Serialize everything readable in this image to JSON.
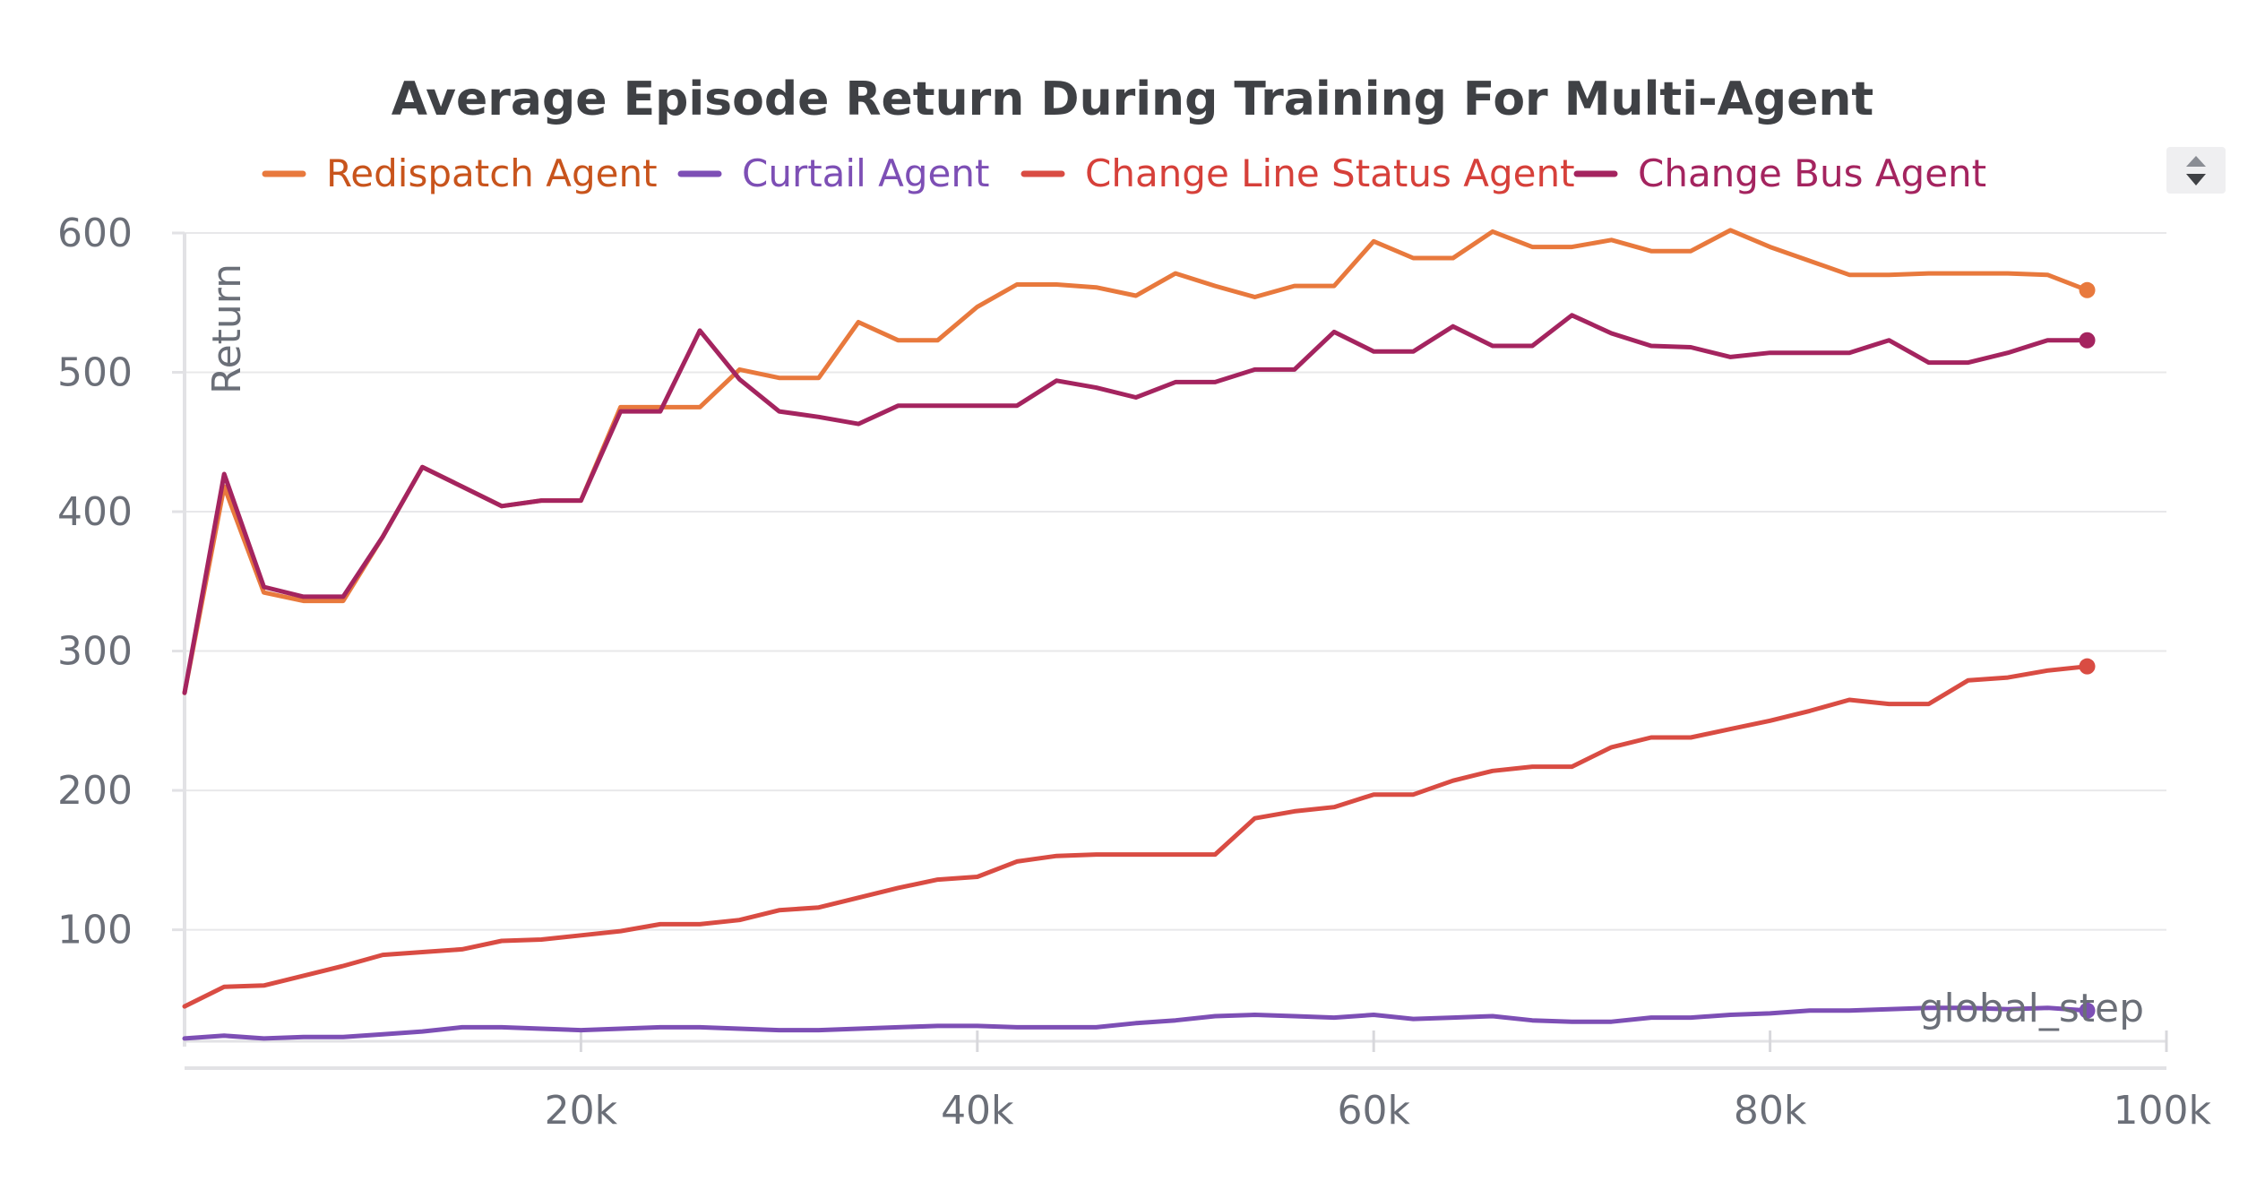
{
  "chart_data": {
    "type": "line",
    "title": "Average Episode Return During Training For Multi-Agent",
    "xlabel": "global_step",
    "ylabel": "Return",
    "xlim": [
      0,
      100000
    ],
    "ylim": [
      20,
      600
    ],
    "x_ticks": [
      {
        "value": 20000,
        "label": "20k"
      },
      {
        "value": 40000,
        "label": "40k"
      },
      {
        "value": 60000,
        "label": "60k"
      },
      {
        "value": 80000,
        "label": "80k"
      },
      {
        "value": 100000,
        "label": "100k"
      }
    ],
    "y_ticks": [
      {
        "value": 100,
        "label": "100"
      },
      {
        "value": 200,
        "label": "200"
      },
      {
        "value": 300,
        "label": "300"
      },
      {
        "value": 400,
        "label": "400"
      },
      {
        "value": 500,
        "label": "500"
      },
      {
        "value": 600,
        "label": "600"
      }
    ],
    "grid": true,
    "legend_position": "top",
    "series": [
      {
        "name": "Redispatch Agent",
        "color": "#e8793d",
        "label_color": "#c8541c",
        "points": [
          [
            0,
            270
          ],
          [
            2000,
            418
          ],
          [
            4000,
            342
          ],
          [
            6000,
            336
          ],
          [
            8000,
            336
          ],
          [
            10000,
            382
          ],
          [
            12000,
            432
          ],
          [
            14000,
            418
          ],
          [
            16000,
            404
          ],
          [
            18000,
            408
          ],
          [
            20000,
            408
          ],
          [
            22000,
            475
          ],
          [
            24000,
            475
          ],
          [
            26000,
            475
          ],
          [
            28000,
            502
          ],
          [
            30000,
            496
          ],
          [
            32000,
            496
          ],
          [
            34000,
            536
          ],
          [
            36000,
            523
          ],
          [
            38000,
            523
          ],
          [
            40000,
            547
          ],
          [
            42000,
            563
          ],
          [
            44000,
            563
          ],
          [
            46000,
            561
          ],
          [
            48000,
            555
          ],
          [
            50000,
            571
          ],
          [
            52000,
            562
          ],
          [
            54000,
            554
          ],
          [
            56000,
            562
          ],
          [
            58000,
            562
          ],
          [
            60000,
            594
          ],
          [
            62000,
            582
          ],
          [
            64000,
            582
          ],
          [
            66000,
            601
          ],
          [
            68000,
            590
          ],
          [
            70000,
            590
          ],
          [
            72000,
            595
          ],
          [
            74000,
            587
          ],
          [
            76000,
            587
          ],
          [
            78000,
            602
          ],
          [
            80000,
            590
          ],
          [
            82000,
            580
          ],
          [
            84000,
            570
          ],
          [
            86000,
            570
          ],
          [
            88000,
            571
          ],
          [
            90000,
            571
          ],
          [
            92000,
            571
          ],
          [
            94000,
            570
          ],
          [
            96000,
            559
          ]
        ]
      },
      {
        "name": "Curtail Agent",
        "color": "#7d4fb5",
        "label_color": "#7d4fb5",
        "points": [
          [
            0,
            22
          ],
          [
            2000,
            24
          ],
          [
            4000,
            22
          ],
          [
            6000,
            23
          ],
          [
            8000,
            23
          ],
          [
            10000,
            25
          ],
          [
            12000,
            27
          ],
          [
            14000,
            30
          ],
          [
            16000,
            30
          ],
          [
            18000,
            29
          ],
          [
            20000,
            28
          ],
          [
            22000,
            29
          ],
          [
            24000,
            30
          ],
          [
            26000,
            30
          ],
          [
            28000,
            29
          ],
          [
            30000,
            28
          ],
          [
            32000,
            28
          ],
          [
            34000,
            29
          ],
          [
            36000,
            30
          ],
          [
            38000,
            31
          ],
          [
            40000,
            31
          ],
          [
            42000,
            30
          ],
          [
            44000,
            30
          ],
          [
            46000,
            30
          ],
          [
            48000,
            33
          ],
          [
            50000,
            35
          ],
          [
            52000,
            38
          ],
          [
            54000,
            39
          ],
          [
            56000,
            38
          ],
          [
            58000,
            37
          ],
          [
            60000,
            39
          ],
          [
            62000,
            36
          ],
          [
            64000,
            37
          ],
          [
            66000,
            38
          ],
          [
            68000,
            35
          ],
          [
            70000,
            34
          ],
          [
            72000,
            34
          ],
          [
            74000,
            37
          ],
          [
            76000,
            37
          ],
          [
            78000,
            39
          ],
          [
            80000,
            40
          ],
          [
            82000,
            42
          ],
          [
            84000,
            42
          ],
          [
            86000,
            43
          ],
          [
            88000,
            44
          ],
          [
            90000,
            44
          ],
          [
            92000,
            43
          ],
          [
            94000,
            44
          ],
          [
            96000,
            42
          ]
        ]
      },
      {
        "name": "Change Line Status Agent",
        "color": "#d94c43",
        "label_color": "#d6403a",
        "points": [
          [
            0,
            45
          ],
          [
            2000,
            59
          ],
          [
            4000,
            60
          ],
          [
            6000,
            67
          ],
          [
            8000,
            74
          ],
          [
            10000,
            82
          ],
          [
            12000,
            84
          ],
          [
            14000,
            86
          ],
          [
            16000,
            92
          ],
          [
            18000,
            93
          ],
          [
            20000,
            96
          ],
          [
            22000,
            99
          ],
          [
            24000,
            104
          ],
          [
            26000,
            104
          ],
          [
            28000,
            107
          ],
          [
            30000,
            114
          ],
          [
            32000,
            116
          ],
          [
            34000,
            123
          ],
          [
            36000,
            130
          ],
          [
            38000,
            136
          ],
          [
            40000,
            138
          ],
          [
            42000,
            149
          ],
          [
            44000,
            153
          ],
          [
            46000,
            154
          ],
          [
            48000,
            154
          ],
          [
            50000,
            154
          ],
          [
            52000,
            154
          ],
          [
            54000,
            180
          ],
          [
            56000,
            185
          ],
          [
            58000,
            188
          ],
          [
            60000,
            197
          ],
          [
            62000,
            197
          ],
          [
            64000,
            207
          ],
          [
            66000,
            214
          ],
          [
            68000,
            217
          ],
          [
            70000,
            217
          ],
          [
            72000,
            231
          ],
          [
            74000,
            238
          ],
          [
            76000,
            238
          ],
          [
            78000,
            244
          ],
          [
            80000,
            250
          ],
          [
            82000,
            257
          ],
          [
            84000,
            265
          ],
          [
            86000,
            262
          ],
          [
            88000,
            262
          ],
          [
            90000,
            279
          ],
          [
            92000,
            281
          ],
          [
            94000,
            286
          ],
          [
            96000,
            289
          ]
        ]
      },
      {
        "name": "Change Bus Agent",
        "color": "#a4245f",
        "label_color": "#a4245f",
        "points": [
          [
            0,
            270
          ],
          [
            2000,
            427
          ],
          [
            4000,
            346
          ],
          [
            6000,
            339
          ],
          [
            8000,
            339
          ],
          [
            10000,
            382
          ],
          [
            12000,
            432
          ],
          [
            14000,
            418
          ],
          [
            16000,
            404
          ],
          [
            18000,
            408
          ],
          [
            20000,
            408
          ],
          [
            22000,
            472
          ],
          [
            24000,
            472
          ],
          [
            26000,
            530
          ],
          [
            28000,
            495
          ],
          [
            30000,
            472
          ],
          [
            32000,
            468
          ],
          [
            34000,
            463
          ],
          [
            36000,
            476
          ],
          [
            38000,
            476
          ],
          [
            40000,
            476
          ],
          [
            42000,
            476
          ],
          [
            44000,
            494
          ],
          [
            46000,
            489
          ],
          [
            48000,
            482
          ],
          [
            50000,
            493
          ],
          [
            52000,
            493
          ],
          [
            54000,
            502
          ],
          [
            56000,
            502
          ],
          [
            58000,
            529
          ],
          [
            60000,
            515
          ],
          [
            62000,
            515
          ],
          [
            64000,
            533
          ],
          [
            66000,
            519
          ],
          [
            68000,
            519
          ],
          [
            70000,
            541
          ],
          [
            72000,
            528
          ],
          [
            74000,
            519
          ],
          [
            76000,
            518
          ],
          [
            78000,
            511
          ],
          [
            80000,
            514
          ],
          [
            82000,
            514
          ],
          [
            84000,
            514
          ],
          [
            86000,
            523
          ],
          [
            88000,
            507
          ],
          [
            90000,
            507
          ],
          [
            92000,
            514
          ],
          [
            94000,
            523
          ],
          [
            96000,
            523
          ]
        ]
      }
    ]
  }
}
